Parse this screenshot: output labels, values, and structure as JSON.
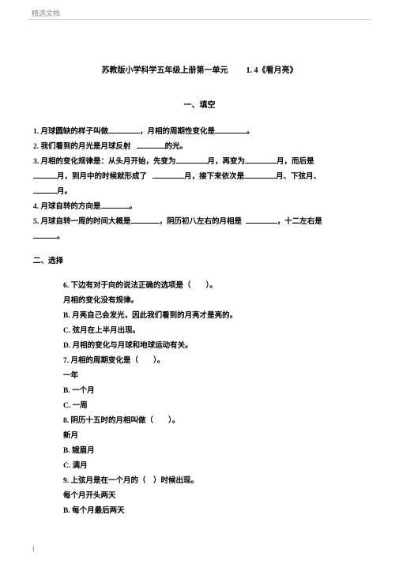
{
  "header": {
    "watermark": "精选文档"
  },
  "title": {
    "text_a": "苏教版小学科学五年级上册第一单元",
    "text_b": "1. 4《看月亮》"
  },
  "section1": {
    "header": "一、填空",
    "q1a": "1. 月球圆缺的样子叫做",
    "q1b": "，月相的周期性变化是",
    "q1c": "。",
    "q2a": "2. 我们看到的月光是月球反射",
    "q2b": "的光。",
    "q3a": "3. 月相的变化规律是：从头月开始，先变为",
    "q3b": "月，再变为",
    "q3c": "月，而后是",
    "q3d": "月，到月中的时候就形成了",
    "q3e": "月，接下来依次是",
    "q3f": "月、下弦月、",
    "q3g": "月。",
    "q4a": "4. 月球自转的方向是",
    "q4b": "。",
    "q5a": "5. 月球自转一周的时间大概是",
    "q5b": "，阴历初八左右的月相是",
    "q5c": "，十二左右是",
    "q5d": "。"
  },
  "section2": {
    "header": "二、选择",
    "q6": "6. 下边有对于向的说法正确的选项是（　　）。",
    "q6a": "月相的变化没有规律。",
    "q6b": "B. 月亮自己会发光，因此我们看到的月亮才是亮的。",
    "q6c": "C. 弦月在上半月出现。",
    "q6d": "D. 月相的变化与月球和地球运动有关。",
    "q7": "7. 月相的周期变化是（　　）。",
    "q7a": "一年",
    "q7b": "B. 一个月",
    "q7c": "C. 一周",
    "q8": "8. 阴历十五时的月相叫做（　　）。",
    "q8a": "新月",
    "q8b": "B. 娥眉月",
    "q8c": "C. 满月",
    "q9": "9. 上弦月是在一个月的（　）时候出现。",
    "q9a": "每个月开头两天",
    "q9b": "B. 每个月最后两天"
  },
  "footer": {
    "page": "1"
  }
}
